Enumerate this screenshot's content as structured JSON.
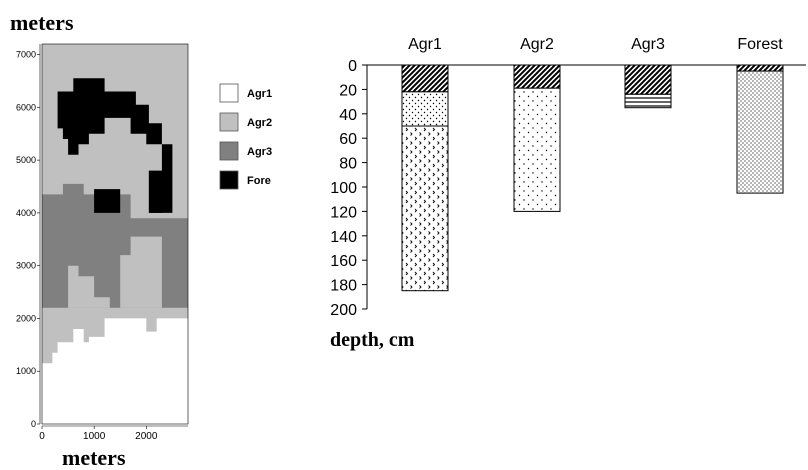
{
  "chart_data": [
    {
      "type": "heatmap",
      "title": "meters",
      "xlabel": "meters",
      "x_ticks": [
        "0",
        "1000",
        "2000"
      ],
      "y_ticks": [
        "0",
        "1000",
        "2000",
        "3000",
        "4000",
        "5000",
        "6000",
        "7000"
      ],
      "xlim": [
        0,
        2800
      ],
      "ylim": [
        0,
        7200
      ],
      "legend": {
        "placement": "right",
        "entries": [
          {
            "name": "Agr1",
            "color": "#ffffff"
          },
          {
            "name": "Agr2",
            "color": "#c0c0c0"
          },
          {
            "name": "Agr3",
            "color": "#808080"
          },
          {
            "name": "Fore",
            "color": "#000000"
          }
        ]
      },
      "regions": [
        {
          "class": "Agr2",
          "description": "background field",
          "polygon": [
            [
              0,
              0
            ],
            [
              2800,
              0
            ],
            [
              2800,
              7200
            ],
            [
              0,
              7200
            ]
          ]
        },
        {
          "class": "Agr3",
          "polygon": [
            [
              0,
              2200
            ],
            [
              0,
              4350
            ],
            [
              400,
              4350
            ],
            [
              400,
              4550
            ],
            [
              800,
              4550
            ],
            [
              800,
              4350
            ],
            [
              1700,
              4350
            ],
            [
              1700,
              3900
            ],
            [
              2800,
              3900
            ],
            [
              2800,
              2200
            ]
          ]
        },
        {
          "class": "Fore",
          "polygon": [
            [
              300,
              5600
            ],
            [
              300,
              6300
            ],
            [
              600,
              6300
            ],
            [
              600,
              6550
            ],
            [
              1200,
              6550
            ],
            [
              1200,
              6300
            ],
            [
              1800,
              6300
            ],
            [
              1800,
              6050
            ],
            [
              2050,
              6050
            ],
            [
              2050,
              5700
            ],
            [
              2300,
              5700
            ],
            [
              2300,
              5300
            ],
            [
              2500,
              5300
            ],
            [
              2500,
              4000
            ],
            [
              2050,
              4000
            ],
            [
              2050,
              4800
            ],
            [
              2300,
              4800
            ],
            [
              2300,
              5300
            ],
            [
              2000,
              5300
            ],
            [
              2000,
              5500
            ],
            [
              1700,
              5500
            ],
            [
              1700,
              5800
            ],
            [
              1200,
              5800
            ],
            [
              1200,
              5500
            ],
            [
              900,
              5500
            ],
            [
              900,
              5300
            ],
            [
              700,
              5300
            ],
            [
              700,
              5100
            ],
            [
              500,
              5100
            ],
            [
              500,
              5400
            ],
            [
              400,
              5400
            ],
            [
              400,
              5600
            ]
          ]
        },
        {
          "class": "Fore",
          "polygon": [
            [
              1000,
              4000
            ],
            [
              1000,
              4450
            ],
            [
              1500,
              4450
            ],
            [
              1500,
              4000
            ]
          ]
        },
        {
          "class": "Fore",
          "polygon": [
            [
              2050,
              4800
            ],
            [
              2050,
              4000
            ],
            [
              2300,
              4000
            ],
            [
              2300,
              4800
            ]
          ]
        },
        {
          "class": "Agr2",
          "polygon": [
            [
              0,
              1150
            ],
            [
              0,
              2200
            ],
            [
              2800,
              2200
            ],
            [
              2800,
              2000
            ],
            [
              2200,
              2000
            ],
            [
              2200,
              1750
            ],
            [
              2000,
              1750
            ],
            [
              2000,
              2000
            ],
            [
              1200,
              2000
            ],
            [
              1200,
              1650
            ],
            [
              900,
              1650
            ],
            [
              900,
              1550
            ],
            [
              800,
              1550
            ],
            [
              800,
              1800
            ],
            [
              600,
              1800
            ],
            [
              600,
              1550
            ],
            [
              300,
              1550
            ],
            [
              300,
              1350
            ],
            [
              200,
              1350
            ],
            [
              200,
              1150
            ]
          ]
        },
        {
          "class": "Agr2",
          "polygon": [
            [
              500,
              2200
            ],
            [
              500,
              3000
            ],
            [
              700,
              3000
            ],
            [
              700,
              2800
            ],
            [
              1000,
              2800
            ],
            [
              1000,
              2400
            ],
            [
              1300,
              2400
            ],
            [
              1300,
              2200
            ]
          ]
        },
        {
          "class": "Agr2",
          "polygon": [
            [
              1500,
              2200
            ],
            [
              1500,
              3200
            ],
            [
              1700,
              3200
            ],
            [
              1700,
              3550
            ],
            [
              2300,
              3550
            ],
            [
              2300,
              2200
            ]
          ]
        },
        {
          "class": "Agr1",
          "polygon": [
            [
              0,
              0
            ],
            [
              2800,
              0
            ],
            [
              2800,
              2000
            ],
            [
              2200,
              2000
            ],
            [
              2200,
              1750
            ],
            [
              2000,
              1750
            ],
            [
              2000,
              2000
            ],
            [
              1200,
              2000
            ],
            [
              1200,
              1650
            ],
            [
              900,
              1650
            ],
            [
              900,
              1550
            ],
            [
              800,
              1550
            ],
            [
              800,
              1800
            ],
            [
              600,
              1800
            ],
            [
              600,
              1550
            ],
            [
              300,
              1550
            ],
            [
              300,
              1350
            ],
            [
              200,
              1350
            ],
            [
              200,
              1150
            ],
            [
              0,
              1150
            ]
          ]
        }
      ]
    },
    {
      "type": "bar",
      "orientation": "vertical-down stacked",
      "categories": [
        "Agr1",
        "Agr2",
        "Agr3",
        "Forest"
      ],
      "ylabel": "depth, cm",
      "ylim": [
        0,
        200
      ],
      "y_ticks": [
        "0",
        "20",
        "40",
        "60",
        "80",
        "100",
        "120",
        "140",
        "160",
        "180",
        "200"
      ],
      "layers": [
        {
          "category": "Agr1",
          "top": 0,
          "bottom": 22,
          "pattern": "diagonal-hatch"
        },
        {
          "category": "Agr1",
          "top": 22,
          "bottom": 50,
          "pattern": "fine-dots"
        },
        {
          "category": "Agr1",
          "top": 50,
          "bottom": 185,
          "pattern": "chevron-dots"
        },
        {
          "category": "Agr2",
          "top": 0,
          "bottom": 19,
          "pattern": "diagonal-hatch"
        },
        {
          "category": "Agr2",
          "top": 19,
          "bottom": 120,
          "pattern": "sparse-dots"
        },
        {
          "category": "Agr3",
          "top": 0,
          "bottom": 24,
          "pattern": "diagonal-hatch"
        },
        {
          "category": "Agr3",
          "top": 24,
          "bottom": 35,
          "pattern": "horizontal-lines"
        },
        {
          "category": "Forest",
          "top": 0,
          "bottom": 5,
          "pattern": "diagonal-hatch"
        },
        {
          "category": "Forest",
          "top": 5,
          "bottom": 105,
          "pattern": "dense-dots"
        }
      ]
    }
  ]
}
